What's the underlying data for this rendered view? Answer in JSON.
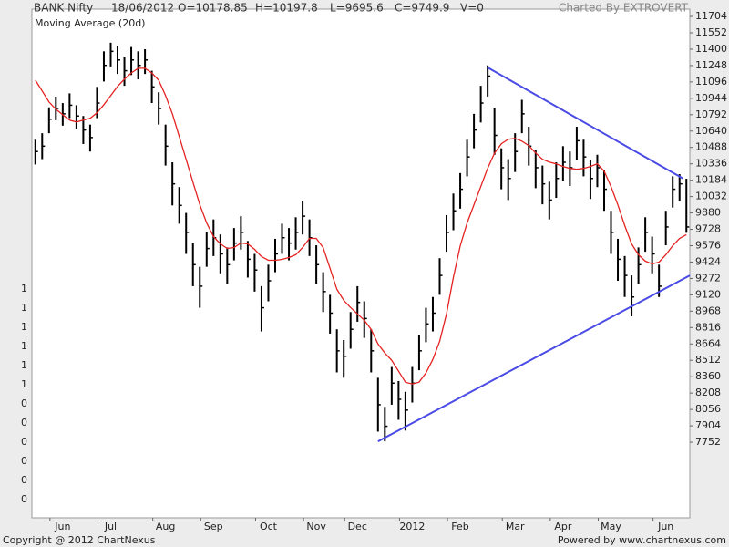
{
  "header": {
    "symbol": "BANK Nifty",
    "date": "18/06/2012",
    "open": "O=10178.85",
    "high": "H=10197.8",
    "low": "L=9695.6",
    "close": "C=9749.9",
    "volume": "V=0",
    "credit": "Charted By EXTROVERT"
  },
  "footer": {
    "copyright": "Copyright @ 2012 ChartNexus",
    "powered": "Powered by www.chartnexus.com"
  },
  "chart_data": {
    "type": "ohlc",
    "categories": [
      null,
      null,
      null,
      null,
      "Jun",
      null,
      null,
      null,
      null,
      null,
      null,
      "Jul",
      null,
      null,
      null,
      null,
      null,
      null,
      null,
      "Aug",
      null,
      null,
      null,
      null,
      null,
      null,
      "Sep",
      null,
      null,
      null,
      null,
      null,
      null,
      null,
      "Oct",
      null,
      null,
      null,
      null,
      null,
      null,
      "Nov",
      null,
      null,
      null,
      null,
      null,
      "Dec",
      null,
      null,
      null,
      null,
      null,
      null,
      null,
      "2012",
      null,
      null,
      null,
      null,
      null,
      null,
      "Feb",
      null,
      null,
      null,
      null,
      null,
      null,
      null,
      "Mar",
      null,
      null,
      null,
      null,
      null,
      null,
      "Apr",
      null,
      null,
      null,
      null,
      null,
      null,
      "May",
      null,
      null,
      null,
      null,
      null,
      null,
      null,
      "Jun",
      null,
      null,
      null
    ],
    "high": [
      10560,
      10620,
      10860,
      10960,
      10900,
      10990,
      10880,
      10780,
      10700,
      11050,
      11380,
      11460,
      11430,
      11330,
      11420,
      11380,
      11400,
      11200,
      11000,
      10700,
      10350,
      10120,
      9880,
      9600,
      9380,
      9700,
      9820,
      9680,
      9560,
      9740,
      9850,
      9620,
      9500,
      9200,
      9400,
      9640,
      9780,
      9740,
      9840,
      9990,
      9820,
      9580,
      9330,
      9120,
      8800,
      8700,
      8960,
      9200,
      9060,
      8800,
      8350,
      8080,
      8450,
      8320,
      8220,
      8450,
      8750,
      9000,
      9100,
      9460,
      9860,
      10060,
      10250,
      10560,
      10800,
      11060,
      11250,
      10850,
      10480,
      10380,
      10620,
      10930,
      10680,
      10460,
      10320,
      10170,
      10350,
      10500,
      10450,
      10680,
      10560,
      10370,
      10420,
      10280,
      9900,
      9640,
      9480,
      9300,
      9560,
      9840,
      9660,
      9400,
      9900,
      10220,
      10240,
      10197.8
    ],
    "low": [
      10330,
      10380,
      10620,
      10740,
      10690,
      10760,
      10660,
      10520,
      10450,
      10760,
      11100,
      11240,
      11170,
      11060,
      11160,
      11120,
      11170,
      10900,
      10700,
      10320,
      9950,
      9780,
      9500,
      9200,
      9000,
      9380,
      9480,
      9320,
      9220,
      9440,
      9540,
      9280,
      9150,
      8780,
      9060,
      9330,
      9500,
      9440,
      9540,
      9680,
      9480,
      9220,
      8960,
      8760,
      8400,
      8350,
      8620,
      8870,
      8720,
      8400,
      7850,
      7760,
      8100,
      7960,
      7860,
      8120,
      8420,
      8680,
      8780,
      9120,
      9520,
      9720,
      9920,
      10220,
      10480,
      10720,
      10960,
      10420,
      10100,
      10000,
      10260,
      10620,
      10320,
      10110,
      9960,
      9820,
      10020,
      10180,
      10130,
      10370,
      10220,
      10010,
      10120,
      9900,
      9500,
      9250,
      9100,
      8920,
      9220,
      9520,
      9320,
      9100,
      9580,
      9930,
      9990,
      9695.6
    ],
    "close": [
      10450,
      10500,
      10750,
      10850,
      10800,
      10880,
      10780,
      10650,
      10580,
      10900,
      11250,
      11380,
      11300,
      11200,
      11300,
      11250,
      11300,
      11050,
      10850,
      10500,
      10150,
      9950,
      9700,
      9400,
      9200,
      9550,
      9650,
      9500,
      9400,
      9600,
      9700,
      9450,
      9350,
      9000,
      9250,
      9500,
      9650,
      9600,
      9700,
      9850,
      9650,
      9400,
      9150,
      8950,
      8600,
      8550,
      8800,
      9050,
      8900,
      8600,
      8100,
      7900,
      8300,
      8150,
      8050,
      8300,
      8600,
      8850,
      8950,
      9300,
      9700,
      9900,
      10100,
      10400,
      10650,
      10900,
      11150,
      10600,
      10300,
      10200,
      10450,
      10800,
      10500,
      10300,
      10150,
      10000,
      10200,
      10350,
      10300,
      10550,
      10400,
      10200,
      10300,
      10100,
      9700,
      9450,
      9300,
      9100,
      9400,
      9700,
      9500,
      9200,
      9750,
      10100,
      10150,
      9749.9
    ],
    "bar_color": "#000000",
    "moving_average": {
      "name": "Moving Average (20d)",
      "color": "#e52222",
      "values": [
        11113,
        11012,
        10910,
        10843,
        10792,
        10741,
        10724,
        10741,
        10758,
        10809,
        10885,
        10969,
        11054,
        11121,
        11180,
        11223,
        11223,
        11180,
        11113,
        10969,
        10800,
        10589,
        10378,
        10167,
        9956,
        9787,
        9661,
        9593,
        9551,
        9559,
        9601,
        9593,
        9542,
        9475,
        9441,
        9441,
        9449,
        9466,
        9492,
        9559,
        9644,
        9644,
        9559,
        9365,
        9171,
        9069,
        9002,
        8943,
        8884,
        8799,
        8664,
        8580,
        8512,
        8411,
        8309,
        8292,
        8309,
        8394,
        8521,
        8689,
        8943,
        9281,
        9576,
        9787,
        9956,
        10125,
        10294,
        10437,
        10522,
        10564,
        10572,
        10547,
        10505,
        10437,
        10378,
        10353,
        10336,
        10311,
        10294,
        10285,
        10294,
        10311,
        10336,
        10268,
        10125,
        9956,
        9762,
        9593,
        9492,
        9433,
        9407,
        9424,
        9492,
        9576,
        9644,
        9678
      ]
    },
    "trendlines": [
      {
        "color": "#4a4ae6",
        "x": [
          66,
          94.5
        ],
        "y": [
          11230,
          10200
        ]
      },
      {
        "color": "#4a4ae6",
        "x": [
          50,
          95.5
        ],
        "y": [
          7760,
          9300
        ]
      }
    ],
    "ylim": [
      7050,
      11772
    ],
    "yticks": [
      11704,
      11552,
      11400,
      11248,
      11096,
      10944,
      10792,
      10640,
      10488,
      10336,
      10184,
      10032,
      9880,
      9728,
      9576,
      9424,
      9272,
      9120,
      8968,
      8816,
      8664,
      8512,
      8360,
      8208,
      8056,
      7904,
      7752
    ],
    "volume_axis_labels": [
      "1",
      "1",
      "1",
      "1",
      "1",
      "1",
      "0",
      "0",
      "0",
      "0",
      "0",
      "0"
    ]
  }
}
